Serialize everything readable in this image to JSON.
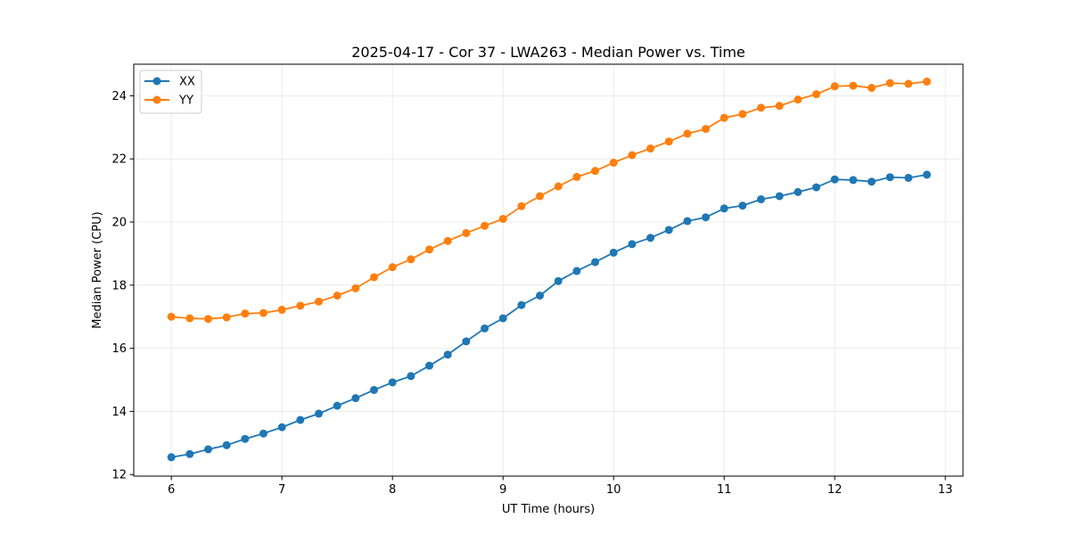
{
  "chart_data": {
    "type": "line",
    "title": "2025-04-17 - Cor 37 - LWA263 - Median Power vs. Time",
    "xlabel": "UT Time (hours)",
    "ylabel": "Median Power (CPU)",
    "xlim": [
      5.66,
      13.16
    ],
    "ylim": [
      11.95,
      25.0
    ],
    "xticks": [
      6,
      7,
      8,
      9,
      10,
      11,
      12,
      13
    ],
    "yticks": [
      12,
      14,
      16,
      18,
      20,
      22,
      24
    ],
    "grid": true,
    "legend_position": "top-left",
    "x": [
      6.0,
      6.1667,
      6.3333,
      6.5,
      6.6667,
      6.8333,
      7.0,
      7.1667,
      7.3333,
      7.5,
      7.6667,
      7.8333,
      8.0,
      8.1667,
      8.3333,
      8.5,
      8.6667,
      8.8333,
      9.0,
      9.1667,
      9.3333,
      9.5,
      9.6667,
      9.8333,
      10.0,
      10.1667,
      10.3333,
      10.5,
      10.6667,
      10.8333,
      11.0,
      11.1667,
      11.3333,
      11.5,
      11.6667,
      11.8333,
      12.0,
      12.1667,
      12.3333,
      12.5,
      12.6667,
      12.8333
    ],
    "series": [
      {
        "name": "XX",
        "color": "#1f77b4",
        "values": [
          12.55,
          12.65,
          12.8,
          12.93,
          13.13,
          13.3,
          13.5,
          13.73,
          13.93,
          14.18,
          14.42,
          14.68,
          14.92,
          15.12,
          15.45,
          15.8,
          16.22,
          16.63,
          16.95,
          17.37,
          17.67,
          18.13,
          18.45,
          18.73,
          19.03,
          19.3,
          19.5,
          19.75,
          20.03,
          20.15,
          20.43,
          20.52,
          20.72,
          20.82,
          20.95,
          21.1,
          21.35,
          21.33,
          21.28,
          21.42,
          21.4,
          21.5
        ]
      },
      {
        "name": "YY",
        "color": "#ff7f0e",
        "values": [
          17.0,
          16.95,
          16.93,
          16.98,
          17.1,
          17.12,
          17.22,
          17.35,
          17.48,
          17.67,
          17.9,
          18.25,
          18.57,
          18.82,
          19.13,
          19.4,
          19.65,
          19.88,
          20.1,
          20.5,
          20.82,
          21.13,
          21.43,
          21.62,
          21.88,
          22.12,
          22.33,
          22.55,
          22.8,
          22.95,
          23.3,
          23.42,
          23.62,
          23.68,
          23.88,
          24.05,
          24.3,
          24.32,
          24.25,
          24.4,
          24.38,
          24.45
        ]
      }
    ]
  }
}
